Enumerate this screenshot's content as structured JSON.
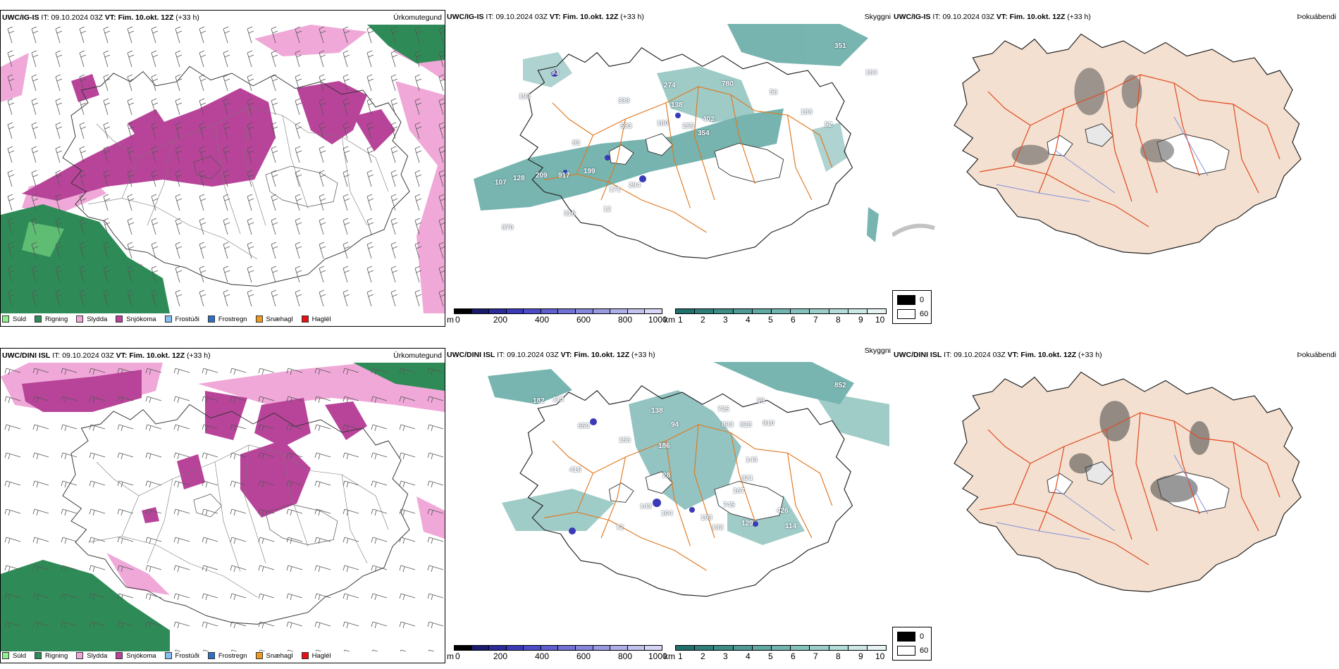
{
  "rows": [
    {
      "model": "UWC/IG-IS",
      "it_label": "IT:",
      "it_value": "09.10.2024 03Z",
      "vt_label": "VT:",
      "vt_value": "Fim. 10.okt. 12Z",
      "lead": "(+33 h)",
      "numbers": [
        "93",
        "193",
        "339",
        "274",
        "138",
        "780",
        "351",
        "184",
        "83",
        "56",
        "180",
        "255",
        "402",
        "183",
        "354",
        "52",
        "593",
        "107",
        "128",
        "209",
        "917",
        "199",
        "171",
        "294",
        "12",
        "316",
        "870"
      ]
    },
    {
      "model": "UWC/DINI ISL",
      "it_label": "IT:",
      "it_value": "09.10.2024 03Z",
      "vt_label": "VT:",
      "vt_value": "Fim. 10.okt. 12Z",
      "lead": "(+33 h)",
      "numbers": [
        "182",
        "113",
        "153",
        "138",
        "94",
        "725",
        "99",
        "833",
        "828",
        "910",
        "852",
        "653",
        "186",
        "143",
        "416",
        "321",
        "167",
        "745",
        "426",
        "143",
        "104",
        "193",
        "129",
        "72",
        "132",
        "114",
        "28"
      ]
    }
  ],
  "panel_names": {
    "precip": "Úrkomutegund",
    "cloud": "Skyggni",
    "fog": "Þokuábendi"
  },
  "precip_legend": [
    {
      "label": "Súld",
      "color": "#90ee90"
    },
    {
      "label": "Rigning",
      "color": "#2e8b57"
    },
    {
      "label": "Slydda",
      "color": "#f0a8d8"
    },
    {
      "label": "Snjókoma",
      "color": "#b8449a"
    },
    {
      "label": "Frostúði",
      "color": "#87bdf0"
    },
    {
      "label": "Frostregn",
      "color": "#2f6fc4"
    },
    {
      "label": "Snæhagl",
      "color": "#f09a20"
    },
    {
      "label": "Haglél",
      "color": "#e81010"
    }
  ],
  "height_scale": {
    "unit": "m",
    "ticks": [
      "0",
      "200",
      "400",
      "600",
      "800",
      "1000"
    ],
    "colors": [
      "#000000",
      "#1a1a6e",
      "#2b2b9a",
      "#3a3ab8",
      "#4c4cc8",
      "#5f5fd0",
      "#7272d6",
      "#8686dc",
      "#9a9ae2",
      "#aeaee8",
      "#c2c2ee",
      "#d6d6f4"
    ]
  },
  "km_scale": {
    "unit": "km",
    "ticks": [
      "1",
      "2",
      "3",
      "4",
      "5",
      "6",
      "7",
      "8",
      "9",
      "10"
    ],
    "colors": [
      "#1f6f6a",
      "#2e7d78",
      "#3e8c86",
      "#4f9a94",
      "#60a8a2",
      "#72b5b0",
      "#86c2bd",
      "#9ccfca",
      "#b4dcd8",
      "#cce8e5",
      "#e6f3f2"
    ]
  },
  "fog_legend": [
    {
      "label": "0",
      "color": "#000000"
    },
    {
      "label": "60",
      "color": "#ffffff"
    }
  ]
}
